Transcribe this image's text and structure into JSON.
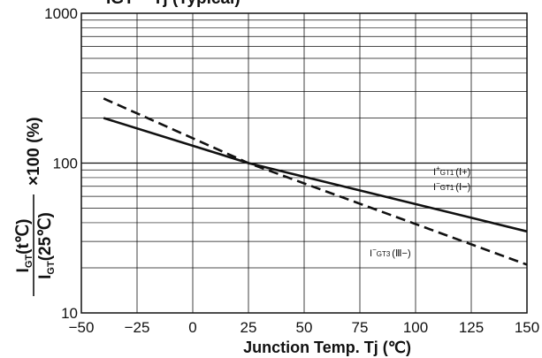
{
  "chart_data": {
    "type": "line",
    "title_partial": "IGT – Tj (Typical)",
    "xlabel": "Junction Temp. Tj (℃)",
    "ylabel": {
      "numerator_main": "I",
      "numerator_sub": "GT",
      "numerator_arg": "(t℃)",
      "denominator_main": "I",
      "denominator_sub": "GT",
      "denominator_arg": "(25℃)",
      "multiplier": "×100 (%)"
    },
    "x_ticks": [
      -50,
      -25,
      0,
      25,
      50,
      75,
      100,
      125,
      150
    ],
    "x_tick_labels": [
      "−50",
      "−25",
      "0",
      "25",
      "50",
      "75",
      "100",
      "125",
      "150"
    ],
    "y_ticks": [
      10,
      100,
      1000
    ],
    "y_tick_labels": [
      "10",
      "100",
      "1000"
    ],
    "xlim": [
      -50,
      150
    ],
    "ylim": [
      10,
      1000
    ],
    "y_scale": "log",
    "grid": true,
    "series": [
      {
        "name_parts": [
          "I",
          "+",
          "GT1",
          "(Ⅰ+)"
        ],
        "name_line2_parts": [
          "I",
          "−",
          "GT1",
          "(Ⅰ−)"
        ],
        "style": "solid",
        "x": [
          -40,
          25,
          150
        ],
        "y": [
          200,
          100,
          35
        ]
      },
      {
        "name_parts": [
          "I",
          "−",
          "GT3",
          "(Ⅲ−)"
        ],
        "style": "dashed",
        "x": [
          -40,
          25,
          150
        ],
        "y": [
          270,
          100,
          21
        ]
      }
    ]
  }
}
